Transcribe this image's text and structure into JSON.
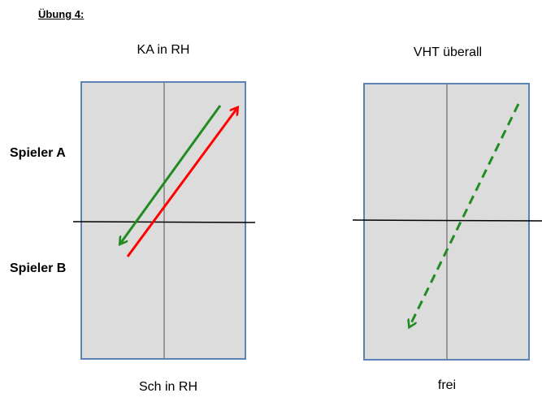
{
  "title": "Übung 4:",
  "left_panel": {
    "top_label": "KA in RH",
    "bottom_label": "Sch in RH",
    "field_color": "#dcdcdc",
    "border_color": "#5b83b5",
    "arrows": [
      {
        "name": "green-arrow",
        "color": "#228b22",
        "style": "solid"
      },
      {
        "name": "red-arrow",
        "color": "#ff0000",
        "style": "solid"
      }
    ]
  },
  "right_panel": {
    "top_label": "VHT überall",
    "bottom_label": "frei",
    "field_color": "#dcdcdc",
    "border_color": "#5b83b5",
    "arrows": [
      {
        "name": "green-dashed-arrow",
        "color": "#228b22",
        "style": "dashed"
      }
    ]
  },
  "side_labels": {
    "player_a": "Spieler A",
    "player_b": "Spieler B"
  }
}
